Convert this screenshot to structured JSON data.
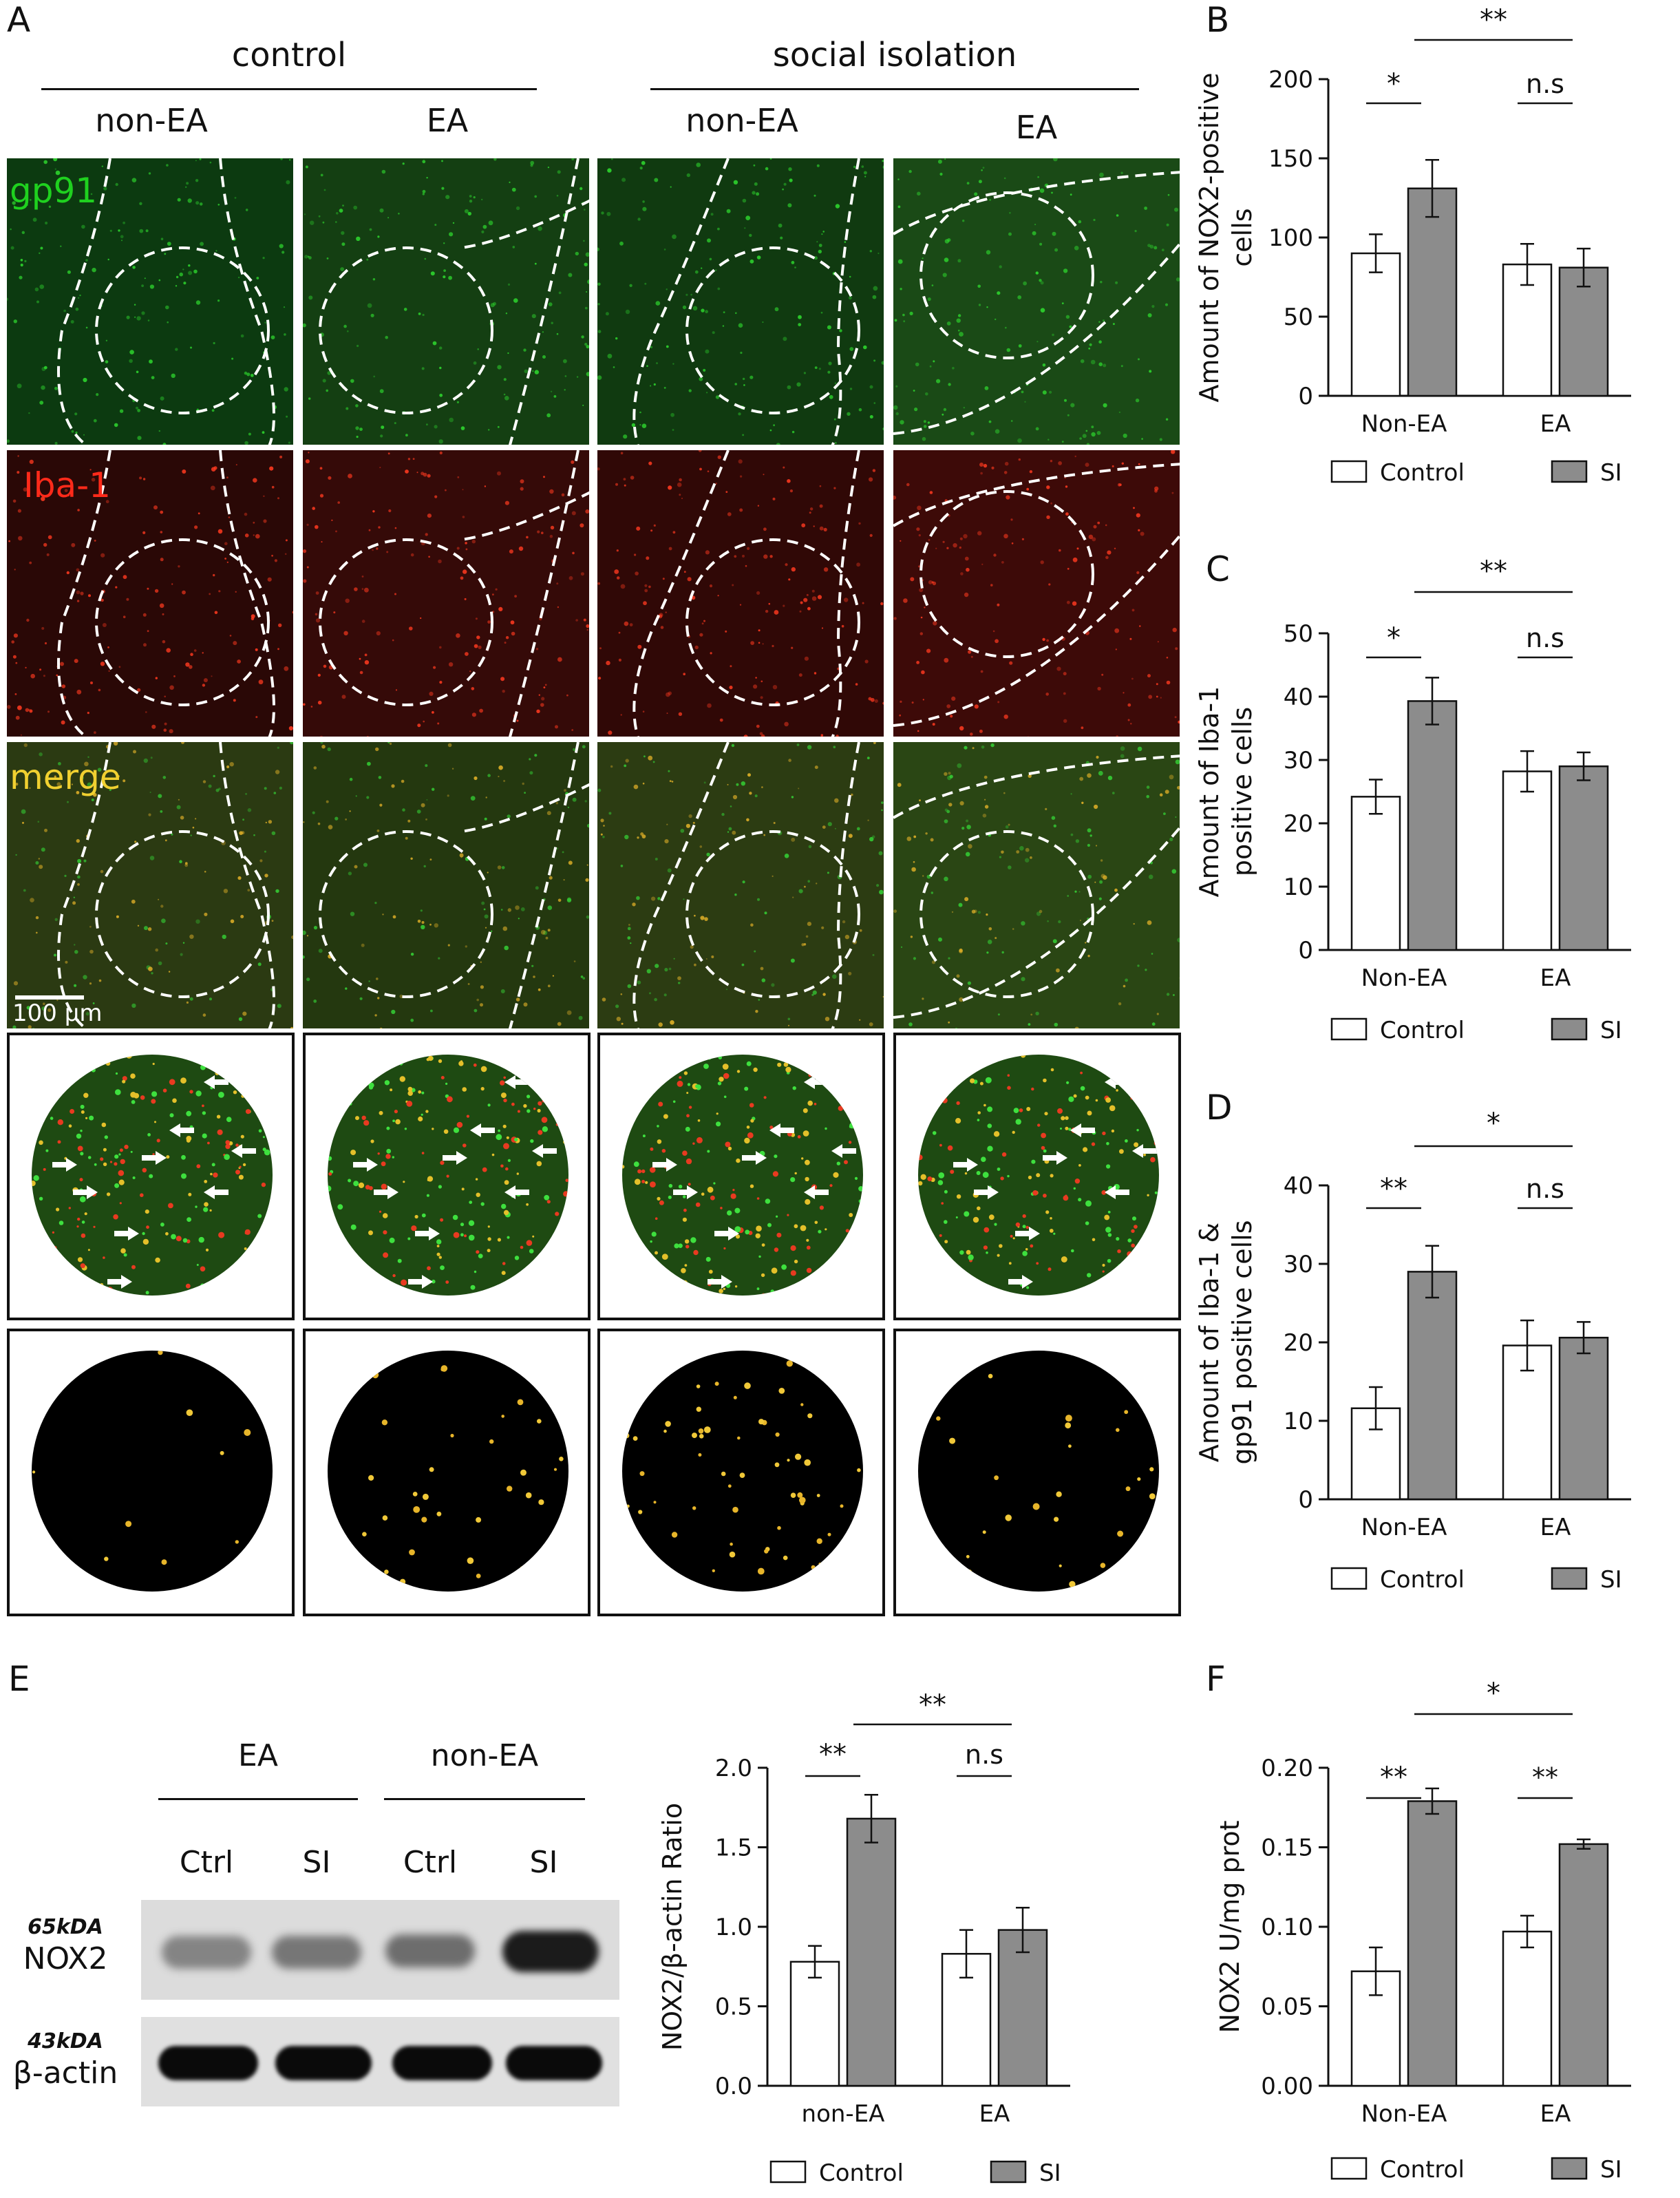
{
  "panel_letters": [
    "A",
    "B",
    "C",
    "D",
    "E",
    "F"
  ],
  "panel_a": {
    "group_control": "control",
    "group_si": "social isolation",
    "columns": [
      "non-EA",
      "EA",
      "non-EA",
      "EA"
    ],
    "channels": [
      "gp91",
      "Iba-1",
      "merge"
    ],
    "scale_bar": "100 μm",
    "colors": {
      "gp91": "#19c419",
      "iba1": "#e0261b",
      "merge": "#e8c52a"
    }
  },
  "panel_e_blot": {
    "groups": [
      "EA",
      "non-EA"
    ],
    "lanes": [
      "Ctrl",
      "SI",
      "Ctrl",
      "SI"
    ],
    "rows": [
      {
        "kda": "65kDA",
        "protein": "NOX2"
      },
      {
        "kda": "43kDA",
        "protein": "β-actin"
      }
    ]
  },
  "chart_data": [
    {
      "panel": "B",
      "type": "bar",
      "categories": [
        "Non-EA",
        "EA"
      ],
      "series": [
        {
          "name": "Control",
          "values": [
            90,
            83
          ],
          "errors": [
            12,
            13
          ],
          "color": "#ffffff"
        },
        {
          "name": "SI",
          "values": [
            131,
            81
          ],
          "errors": [
            18,
            12
          ],
          "color": "#8c8c8c"
        }
      ],
      "ylabel": "Amount of NOX2-positive cells",
      "ylim": [
        0,
        200
      ],
      "yticks": [
        "0",
        "50",
        "100",
        "150",
        "200"
      ],
      "significance": [
        {
          "label": "*",
          "between": "within-Non-EA"
        },
        {
          "label": "n.s",
          "between": "within-EA"
        },
        {
          "label": "**",
          "between": "SI-vs-SI"
        }
      ],
      "legend_position": "bottom"
    },
    {
      "panel": "C",
      "type": "bar",
      "categories": [
        "Non-EA",
        "EA"
      ],
      "series": [
        {
          "name": "Control",
          "values": [
            24.2,
            28.2
          ],
          "errors": [
            2.7,
            3.2
          ],
          "color": "#ffffff"
        },
        {
          "name": "SI",
          "values": [
            39.3,
            29.0
          ],
          "errors": [
            3.7,
            2.2
          ],
          "color": "#8c8c8c"
        }
      ],
      "ylabel": "Amount of Iba-1 positive cells",
      "ylim": [
        0,
        50
      ],
      "yticks": [
        "0",
        "10",
        "20",
        "30",
        "40",
        "50"
      ],
      "significance": [
        {
          "label": "*",
          "between": "within-Non-EA"
        },
        {
          "label": "n.s",
          "between": "within-EA"
        },
        {
          "label": "**",
          "between": "SI-vs-SI"
        }
      ],
      "legend_position": "bottom"
    },
    {
      "panel": "D",
      "type": "bar",
      "categories": [
        "Non-EA",
        "EA"
      ],
      "series": [
        {
          "name": "Control",
          "values": [
            11.6,
            19.6
          ],
          "errors": [
            2.7,
            3.2
          ],
          "color": "#ffffff"
        },
        {
          "name": "SI",
          "values": [
            29.0,
            20.6
          ],
          "errors": [
            3.3,
            2.0
          ],
          "color": "#8c8c8c"
        }
      ],
      "ylabel": "Amount of Iba-1 & gp91 positive cells",
      "ylim": [
        0,
        40
      ],
      "yticks": [
        "0",
        "10",
        "20",
        "30",
        "40"
      ],
      "significance": [
        {
          "label": "**",
          "between": "within-Non-EA"
        },
        {
          "label": "n.s",
          "between": "within-EA"
        },
        {
          "label": "*",
          "between": "SI-vs-SI"
        }
      ],
      "legend_position": "bottom"
    },
    {
      "panel": "E",
      "type": "bar",
      "categories": [
        "non-EA",
        "EA"
      ],
      "series": [
        {
          "name": "Control",
          "values": [
            0.78,
            0.83
          ],
          "errors": [
            0.1,
            0.15
          ],
          "color": "#ffffff"
        },
        {
          "name": "SI",
          "values": [
            1.68,
            0.98
          ],
          "errors": [
            0.15,
            0.14
          ],
          "color": "#8c8c8c"
        }
      ],
      "ylabel": "NOX2/β-actin Ratio",
      "ylim": [
        0,
        2.0
      ],
      "yticks": [
        "0.0",
        "0.5",
        "1.0",
        "1.5",
        "2.0"
      ],
      "significance": [
        {
          "label": "**",
          "between": "within-non-EA"
        },
        {
          "label": "n.s",
          "between": "within-EA"
        },
        {
          "label": "**",
          "between": "SI-vs-SI"
        }
      ],
      "legend_position": "bottom"
    },
    {
      "panel": "F",
      "type": "bar",
      "categories": [
        "Non-EA",
        "EA"
      ],
      "series": [
        {
          "name": "Control",
          "values": [
            0.072,
            0.097
          ],
          "errors": [
            0.015,
            0.01
          ],
          "color": "#ffffff"
        },
        {
          "name": "SI",
          "values": [
            0.179,
            0.152
          ],
          "errors": [
            0.008,
            0.003
          ],
          "color": "#8c8c8c"
        }
      ],
      "ylabel": "NOX2 U/mg prot",
      "ylim": [
        0,
        0.2
      ],
      "yticks": [
        "0.00",
        "0.05",
        "0.10",
        "0.15",
        "0.20"
      ],
      "significance": [
        {
          "label": "**",
          "between": "within-Non-EA"
        },
        {
          "label": "**",
          "between": "within-EA"
        },
        {
          "label": "*",
          "between": "SI-vs-SI"
        }
      ],
      "legend_position": "bottom"
    }
  ]
}
